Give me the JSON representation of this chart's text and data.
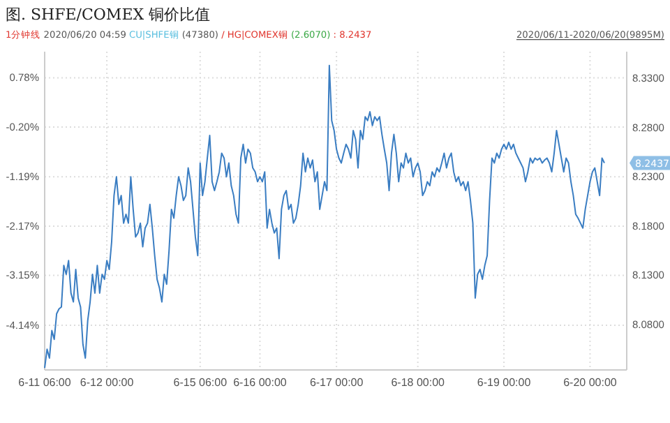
{
  "chart_data": {
    "type": "line",
    "title": "图. SHFE/COMEX 铜价比值",
    "annotations": [
      "1分钟线",
      "2020/06/20 04:59",
      "CU|SHFE铜",
      "(47380)",
      "/ HG|COMEX铜",
      "(2.6070)",
      ": 8.2437",
      "2020/06/11-2020/06/20(9895M)",
      "8.2437"
    ],
    "categories": [
      "6-11 06:00",
      null,
      null,
      null,
      null,
      null,
      null,
      null,
      null,
      null,
      null,
      null,
      null,
      null,
      null,
      null,
      null,
      null,
      null,
      null,
      null,
      null,
      null,
      null,
      null,
      null,
      "6-12 00:00",
      null,
      null,
      null,
      null,
      null,
      null,
      null,
      null,
      null,
      null,
      null,
      null,
      null,
      null,
      null,
      null,
      null,
      null,
      null,
      null,
      null,
      null,
      null,
      null,
      null,
      null,
      null,
      null,
      null,
      null,
      null,
      null,
      null,
      null,
      null,
      null,
      null,
      null,
      "6-15 06:00",
      null,
      null,
      null,
      null,
      null,
      null,
      null,
      null,
      null,
      null,
      null,
      null,
      null,
      null,
      null,
      null,
      null,
      null,
      null,
      null,
      null,
      null,
      null,
      null,
      "6-16 00:00",
      null,
      null,
      null,
      null,
      null,
      null,
      null,
      null,
      null,
      null,
      null,
      null,
      null,
      null,
      null,
      null,
      null,
      null,
      null,
      null,
      null,
      null,
      null,
      null,
      null,
      null,
      null,
      null,
      null,
      null,
      null,
      "6-17 00:00",
      null,
      null,
      null,
      null,
      null,
      null,
      null,
      null,
      null,
      null,
      null,
      null,
      null,
      null,
      null,
      null,
      null,
      null,
      null,
      null,
      null,
      null,
      null,
      null,
      null,
      null,
      null,
      null,
      null,
      null,
      null,
      null,
      null,
      "6-18 00:00",
      null,
      null,
      null,
      null,
      null,
      null,
      null,
      null,
      null,
      null,
      null,
      null,
      null,
      null,
      null,
      null,
      null,
      null,
      null,
      null,
      null,
      null,
      null,
      null,
      null,
      null,
      null,
      null,
      null,
      null,
      null,
      null,
      null,
      null,
      null,
      "6-19 00:00",
      null,
      null,
      null,
      null,
      null,
      null,
      null,
      null,
      null,
      null,
      null,
      null,
      null,
      null,
      null,
      null,
      null,
      null,
      null,
      null,
      null,
      null,
      null,
      null,
      null,
      null,
      null,
      null,
      null,
      null,
      null,
      null,
      null,
      null,
      null,
      "6-20 00:00",
      null,
      null,
      null,
      null,
      null,
      null
    ],
    "series": [
      {
        "color": "#3a7dc2",
        "axis": "y2",
        "values": [
          8.036,
          8.055,
          8.046,
          8.074,
          8.065,
          8.091,
          8.096,
          8.098,
          8.14,
          8.131,
          8.145,
          8.112,
          8.103,
          8.136,
          8.107,
          8.098,
          8.06,
          8.046,
          8.084,
          8.103,
          8.131,
          8.112,
          8.14,
          8.112,
          8.131,
          8.126,
          8.145,
          8.136,
          8.164,
          8.211,
          8.23,
          8.202,
          8.211,
          8.183,
          8.192,
          8.183,
          8.23,
          8.197,
          8.169,
          8.173,
          8.183,
          8.159,
          8.178,
          8.183,
          8.202,
          8.178,
          8.15,
          8.126,
          8.117,
          8.103,
          8.131,
          8.121,
          8.155,
          8.197,
          8.188,
          8.211,
          8.23,
          8.221,
          8.206,
          8.211,
          8.239,
          8.225,
          8.197,
          8.169,
          8.15,
          8.244,
          8.211,
          8.225,
          8.249,
          8.272,
          8.225,
          8.216,
          8.225,
          8.235,
          8.254,
          8.249,
          8.23,
          8.244,
          8.221,
          8.211,
          8.192,
          8.183,
          8.249,
          8.263,
          8.244,
          8.258,
          8.254,
          8.239,
          8.235,
          8.225,
          8.23,
          8.225,
          8.235,
          8.178,
          8.197,
          8.183,
          8.173,
          8.178,
          8.147,
          8.197,
          8.211,
          8.216,
          8.197,
          8.202,
          8.183,
          8.188,
          8.202,
          8.221,
          8.254,
          8.235,
          8.249,
          8.239,
          8.247,
          8.225,
          8.235,
          8.197,
          8.211,
          8.225,
          8.216,
          8.343,
          8.287,
          8.277,
          8.258,
          8.249,
          8.244,
          8.254,
          8.263,
          8.258,
          8.249,
          8.277,
          8.268,
          8.239,
          8.277,
          8.268,
          8.291,
          8.287,
          8.296,
          8.282,
          8.291,
          8.287,
          8.291,
          8.273,
          8.258,
          8.244,
          8.216,
          8.254,
          8.273,
          8.254,
          8.225,
          8.244,
          8.239,
          8.254,
          8.244,
          8.249,
          8.23,
          8.239,
          8.244,
          8.235,
          8.211,
          8.216,
          8.225,
          8.221,
          8.235,
          8.23,
          8.239,
          8.235,
          8.244,
          8.254,
          8.239,
          8.249,
          8.254,
          8.235,
          8.225,
          8.23,
          8.221,
          8.225,
          8.216,
          8.225,
          8.206,
          8.183,
          8.107,
          8.131,
          8.136,
          8.126,
          8.14,
          8.15,
          8.206,
          8.249,
          8.244,
          8.254,
          8.249,
          8.258,
          8.263,
          8.258,
          8.265,
          8.258,
          8.263,
          8.254,
          8.249,
          8.244,
          8.239,
          8.225,
          8.235,
          8.249,
          8.244,
          8.249,
          8.247,
          8.249,
          8.244,
          8.247,
          8.249,
          8.244,
          8.235,
          8.254,
          8.277,
          8.263,
          8.249,
          8.235,
          8.249,
          8.244,
          8.225,
          8.211,
          8.192,
          8.188,
          8.183,
          8.178,
          8.197,
          8.211,
          8.225,
          8.235,
          8.239,
          8.225,
          8.211,
          8.249,
          8.244
        ]
      }
    ],
    "ylim": [
      -5.03,
      1.3
    ],
    "yticks": [
      {
        "value": 0.78,
        "label": "0.78%"
      },
      {
        "value": -0.2,
        "label": "-0.20%"
      },
      {
        "value": -1.19,
        "label": "-1.19%"
      },
      {
        "value": -2.17,
        "label": "-2.17%"
      },
      {
        "value": -3.15,
        "label": "-3.15%"
      },
      {
        "value": -4.14,
        "label": "-4.14%"
      }
    ],
    "y2lim": [
      8.034,
      8.357
    ],
    "y2ticks": [
      {
        "value": 8.33,
        "label": "8.3300"
      },
      {
        "value": 8.28,
        "label": "8.2800"
      },
      {
        "value": 8.23,
        "label": "8.2300"
      },
      {
        "value": 8.18,
        "label": "8.1800"
      },
      {
        "value": 8.13,
        "label": "8.1300"
      },
      {
        "value": 8.08,
        "label": "8.0800"
      }
    ],
    "grid": true,
    "marker": "none",
    "line_style": "solid"
  }
}
